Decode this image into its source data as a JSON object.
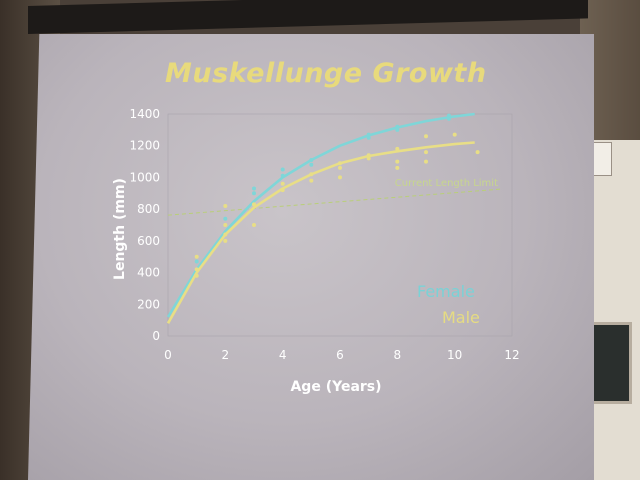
{
  "slide": {
    "title": "Muskellunge Growth",
    "legend_female": "Female",
    "legend_male": "Male",
    "limit_label": "Current Length Limit"
  },
  "chart_data": {
    "type": "scatter",
    "title": "Muskellunge Growth",
    "xlabel": "Age (Years)",
    "ylabel": "Length (mm)",
    "xlim": [
      0,
      12
    ],
    "ylim": [
      0,
      1400
    ],
    "xticks": [
      0,
      2,
      4,
      6,
      8,
      10,
      12
    ],
    "yticks": [
      0,
      200,
      400,
      600,
      800,
      1000,
      1200,
      1400
    ],
    "legend_position": "bottom-right",
    "annotation": {
      "text": "Current Length Limit",
      "y": 762
    },
    "series": [
      {
        "name": "Female",
        "color": "#7fd6d8",
        "curve": [
          [
            0,
            120
          ],
          [
            1,
            420
          ],
          [
            2,
            660
          ],
          [
            3,
            850
          ],
          [
            4,
            1000
          ],
          [
            5,
            1110
          ],
          [
            6,
            1200
          ],
          [
            7,
            1265
          ],
          [
            8,
            1315
          ],
          [
            9,
            1355
          ],
          [
            10,
            1385
          ],
          [
            10.7,
            1400
          ]
        ],
        "points": [
          [
            1,
            470
          ],
          [
            2,
            740
          ],
          [
            3,
            900
          ],
          [
            3,
            930
          ],
          [
            4,
            1010
          ],
          [
            4,
            1050
          ],
          [
            5,
            1080
          ],
          [
            5,
            1110
          ],
          [
            7,
            1250
          ],
          [
            7,
            1270
          ],
          [
            8,
            1300
          ],
          [
            8,
            1320
          ],
          [
            9.8,
            1370
          ],
          [
            9.8,
            1390
          ]
        ]
      },
      {
        "name": "Male",
        "color": "#e8de86",
        "curve": [
          [
            0,
            80
          ],
          [
            1,
            400
          ],
          [
            2,
            640
          ],
          [
            3,
            810
          ],
          [
            4,
            930
          ],
          [
            5,
            1020
          ],
          [
            6,
            1090
          ],
          [
            7,
            1135
          ],
          [
            8,
            1165
          ],
          [
            9,
            1190
          ],
          [
            10,
            1210
          ],
          [
            10.7,
            1220
          ]
        ],
        "points": [
          [
            1,
            380
          ],
          [
            1,
            420
          ],
          [
            1,
            500
          ],
          [
            2,
            600
          ],
          [
            2,
            640
          ],
          [
            2,
            700
          ],
          [
            2,
            820
          ],
          [
            3,
            700
          ],
          [
            3,
            830
          ],
          [
            4,
            920
          ],
          [
            4,
            960
          ],
          [
            5,
            980
          ],
          [
            5,
            1020
          ],
          [
            6,
            1000
          ],
          [
            6,
            1060
          ],
          [
            6,
            1090
          ],
          [
            7,
            1120
          ],
          [
            7,
            1140
          ],
          [
            8,
            1060
          ],
          [
            8,
            1100
          ],
          [
            8,
            1180
          ],
          [
            9,
            1100
          ],
          [
            9,
            1160
          ],
          [
            9,
            1260
          ],
          [
            10,
            1270
          ],
          [
            10.8,
            1160
          ]
        ]
      }
    ]
  }
}
